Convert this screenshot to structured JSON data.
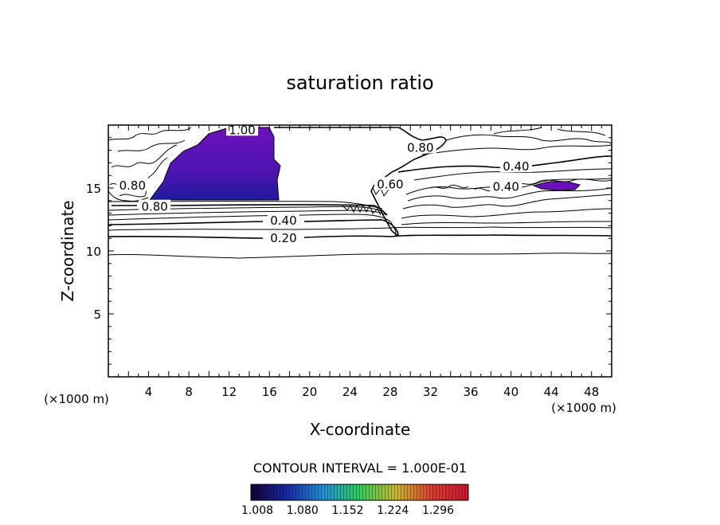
{
  "chart_data": {
    "type": "contour",
    "title": "saturation ratio",
    "xlabel": "X-coordinate",
    "ylabel": "Z-coordinate",
    "x_unit_left": "(×1000 m)",
    "x_unit_right": "(×1000 m)",
    "xlim": [
      0,
      50
    ],
    "ylim": [
      0,
      20
    ],
    "x_ticks": [
      4,
      8,
      12,
      16,
      20,
      24,
      28,
      32,
      36,
      40,
      44,
      48
    ],
    "y_ticks": [
      5,
      10,
      15
    ],
    "contour_interval_text": "CONTOUR INTERVAL = 1.000E-01",
    "contour_labels": [
      {
        "text": "1.00",
        "x": 13.3,
        "z": 19.6
      },
      {
        "text": "0.80",
        "x": 31.0,
        "z": 18.2
      },
      {
        "text": "0.40",
        "x": 40.5,
        "z": 16.7
      },
      {
        "text": "0.60",
        "x": 28.0,
        "z": 15.3
      },
      {
        "text": "0.40",
        "x": 39.5,
        "z": 15.1
      },
      {
        "text": "0.80",
        "x": 2.4,
        "z": 15.2
      },
      {
        "text": "0.80",
        "x": 4.6,
        "z": 13.5
      },
      {
        "text": "0.40",
        "x": 17.4,
        "z": 12.4
      },
      {
        "text": "0.20",
        "x": 17.4,
        "z": 11.0
      }
    ],
    "colorbar": {
      "ticks": [
        "1.008",
        "1.080",
        "1.152",
        "1.224",
        "1.296"
      ],
      "min": 1.0,
      "max": 1.32,
      "colors": [
        "#14003c",
        "#1a2aa0",
        "#2a8fd0",
        "#3ac860",
        "#c8b840",
        "#d44030",
        "#c81830"
      ]
    },
    "shaded_color": "#6a12b8",
    "shaded_core_color": "#1e1a9a"
  }
}
